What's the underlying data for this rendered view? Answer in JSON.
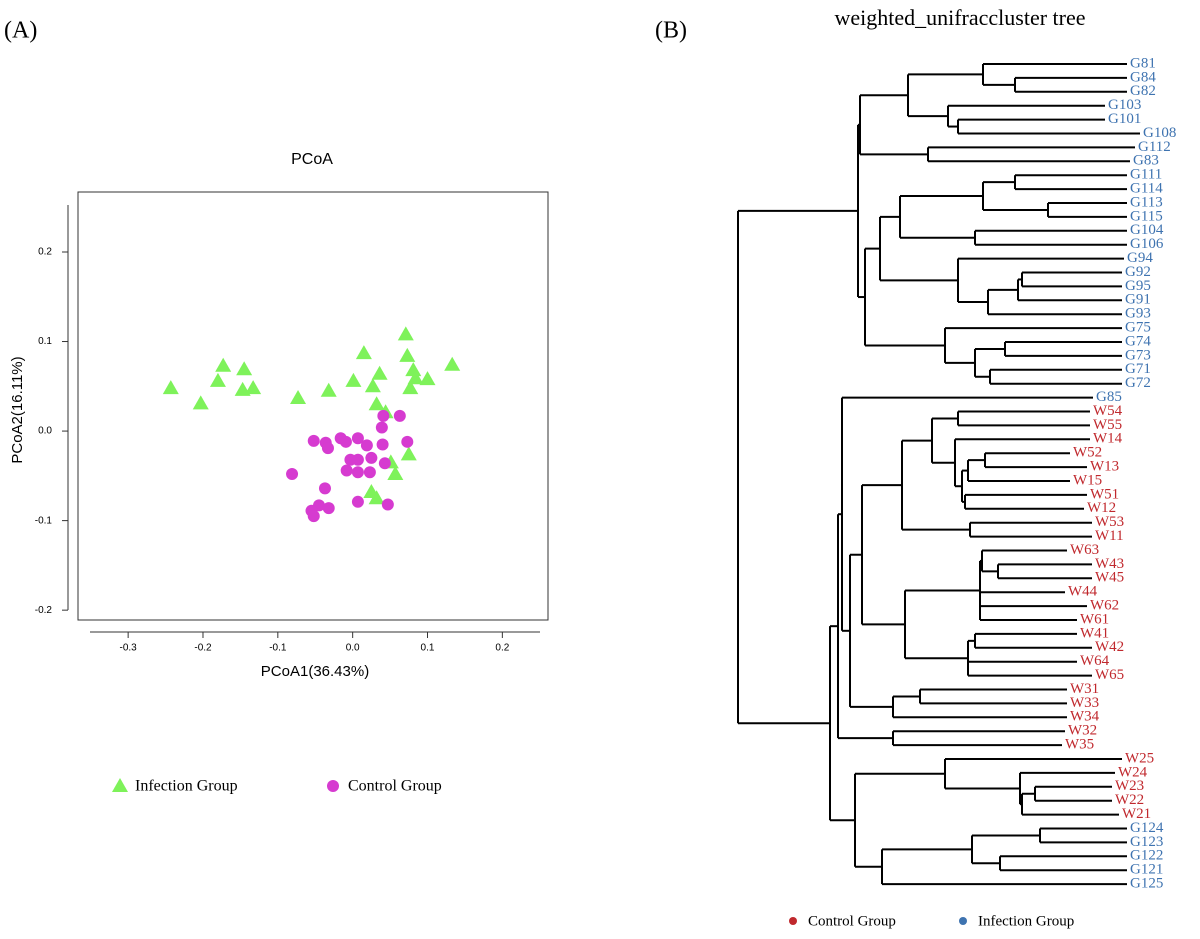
{
  "panels": [
    "(A)",
    "(B)"
  ],
  "chart_data": {
    "type": "scatter",
    "title": "PCoA",
    "x_label": "PCoA1(36.43%)",
    "y_label": "PCoA2(16.11%)",
    "xlim": [
      -0.367,
      0.261
    ],
    "ylim": [
      -0.211,
      0.267
    ],
    "xticks": [
      -0.3,
      -0.2,
      -0.1,
      {
        "value": 0,
        "label": "0.0"
      },
      0.1,
      0.2
    ],
    "yticks": [
      -0.2,
      -0.1,
      {
        "value": 0,
        "label": "0.0"
      },
      0.1,
      0.2
    ],
    "series": [
      {
        "name": "Infection Group",
        "color": "#7ef25a",
        "marker": "triangle",
        "x": [
          -0.243,
          -0.203,
          -0.18,
          -0.173,
          -0.145,
          -0.147,
          -0.133,
          -0.073,
          -0.032,
          0.001,
          0.015,
          0.027,
          0.036,
          0.032,
          0.044,
          0.071,
          0.073,
          0.081,
          0.084,
          0.1,
          0.077,
          0.133,
          0.075,
          0.051,
          0.057,
          0.025,
          0.032
        ],
        "values": [
          0.048,
          0.031,
          0.056,
          0.073,
          0.069,
          0.046,
          0.048,
          0.037,
          0.045,
          0.056,
          0.087,
          0.05,
          0.064,
          0.03,
          0.021,
          0.108,
          0.084,
          0.068,
          0.059,
          0.058,
          0.048,
          0.074,
          -0.026,
          -0.035,
          -0.048,
          -0.068,
          -0.075
        ]
      },
      {
        "name": "Control Group",
        "color": "#d63bd0",
        "marker": "circle",
        "x": [
          -0.081,
          -0.052,
          -0.036,
          -0.033,
          -0.016,
          -0.009,
          -0.003,
          -0.008,
          0.007,
          0.007,
          0.023,
          0.019,
          0.025,
          0.007,
          0.039,
          0.041,
          0.04,
          0.043,
          0.063,
          0.073,
          -0.037,
          -0.045,
          -0.055,
          -0.052,
          -0.032,
          0.007,
          0.047
        ],
        "values": [
          -0.048,
          -0.011,
          -0.013,
          -0.019,
          -0.008,
          -0.012,
          -0.032,
          -0.044,
          -0.046,
          -0.032,
          -0.046,
          -0.016,
          -0.03,
          -0.008,
          0.004,
          0.017,
          -0.015,
          -0.036,
          0.017,
          -0.012,
          -0.064,
          -0.083,
          -0.089,
          -0.095,
          -0.086,
          -0.079,
          -0.082
        ]
      }
    ]
  },
  "tree": {
    "title": "weighted_unifraccluster tree",
    "leaves": [
      {
        "label": "G81",
        "color": "#3e73b0"
      },
      {
        "label": "G84",
        "color": "#3e73b0"
      },
      {
        "label": "G82",
        "color": "#3e73b0"
      },
      {
        "label": "G103",
        "color": "#3e73b0"
      },
      {
        "label": "G101",
        "color": "#3e73b0"
      },
      {
        "label": "G108",
        "color": "#3e73b0"
      },
      {
        "label": "G112",
        "color": "#3e73b0"
      },
      {
        "label": "G83",
        "color": "#3e73b0"
      },
      {
        "label": "G111",
        "color": "#3e73b0"
      },
      {
        "label": "G114",
        "color": "#3e73b0"
      },
      {
        "label": "G113",
        "color": "#3e73b0"
      },
      {
        "label": "G115",
        "color": "#3e73b0"
      },
      {
        "label": "G104",
        "color": "#3e73b0"
      },
      {
        "label": "G106",
        "color": "#3e73b0"
      },
      {
        "label": "G94",
        "color": "#3e73b0"
      },
      {
        "label": "G92",
        "color": "#3e73b0"
      },
      {
        "label": "G95",
        "color": "#3e73b0"
      },
      {
        "label": "G91",
        "color": "#3e73b0"
      },
      {
        "label": "G93",
        "color": "#3e73b0"
      },
      {
        "label": "G75",
        "color": "#3e73b0"
      },
      {
        "label": "G74",
        "color": "#3e73b0"
      },
      {
        "label": "G73",
        "color": "#3e73b0"
      },
      {
        "label": "G71",
        "color": "#3e73b0"
      },
      {
        "label": "G72",
        "color": "#3e73b0"
      },
      {
        "label": "G85",
        "color": "#3e73b0"
      },
      {
        "label": "W54",
        "color": "#c0282d"
      },
      {
        "label": "W55",
        "color": "#c0282d"
      },
      {
        "label": "W14",
        "color": "#c0282d"
      },
      {
        "label": "W52",
        "color": "#c0282d"
      },
      {
        "label": "W13",
        "color": "#c0282d"
      },
      {
        "label": "W15",
        "color": "#c0282d"
      },
      {
        "label": "W51",
        "color": "#c0282d"
      },
      {
        "label": "W12",
        "color": "#c0282d"
      },
      {
        "label": "W53",
        "color": "#c0282d"
      },
      {
        "label": "W11",
        "color": "#c0282d"
      },
      {
        "label": "W63",
        "color": "#c0282d"
      },
      {
        "label": "W43",
        "color": "#c0282d"
      },
      {
        "label": "W45",
        "color": "#c0282d"
      },
      {
        "label": "W44",
        "color": "#c0282d"
      },
      {
        "label": "W62",
        "color": "#c0282d"
      },
      {
        "label": "W61",
        "color": "#c0282d"
      },
      {
        "label": "W41",
        "color": "#c0282d"
      },
      {
        "label": "W42",
        "color": "#c0282d"
      },
      {
        "label": "W64",
        "color": "#c0282d"
      },
      {
        "label": "W65",
        "color": "#c0282d"
      },
      {
        "label": "W31",
        "color": "#c0282d"
      },
      {
        "label": "W33",
        "color": "#c0282d"
      },
      {
        "label": "W34",
        "color": "#c0282d"
      },
      {
        "label": "W32",
        "color": "#c0282d"
      },
      {
        "label": "W35",
        "color": "#c0282d"
      },
      {
        "label": "W25",
        "color": "#c0282d"
      },
      {
        "label": "W24",
        "color": "#c0282d"
      },
      {
        "label": "W23",
        "color": "#c0282d"
      },
      {
        "label": "W22",
        "color": "#c0282d"
      },
      {
        "label": "W21",
        "color": "#c0282d"
      },
      {
        "label": "G124",
        "color": "#3e73b0"
      },
      {
        "label": "G123",
        "color": "#3e73b0"
      },
      {
        "label": "G122",
        "color": "#3e73b0"
      },
      {
        "label": "G121",
        "color": "#3e73b0"
      },
      {
        "label": "G125",
        "color": "#3e73b0"
      }
    ],
    "legend": [
      {
        "label": "Control Group",
        "color": "#c0282d"
      },
      {
        "label": "Infection Group",
        "color": "#3e73b0"
      }
    ]
  }
}
